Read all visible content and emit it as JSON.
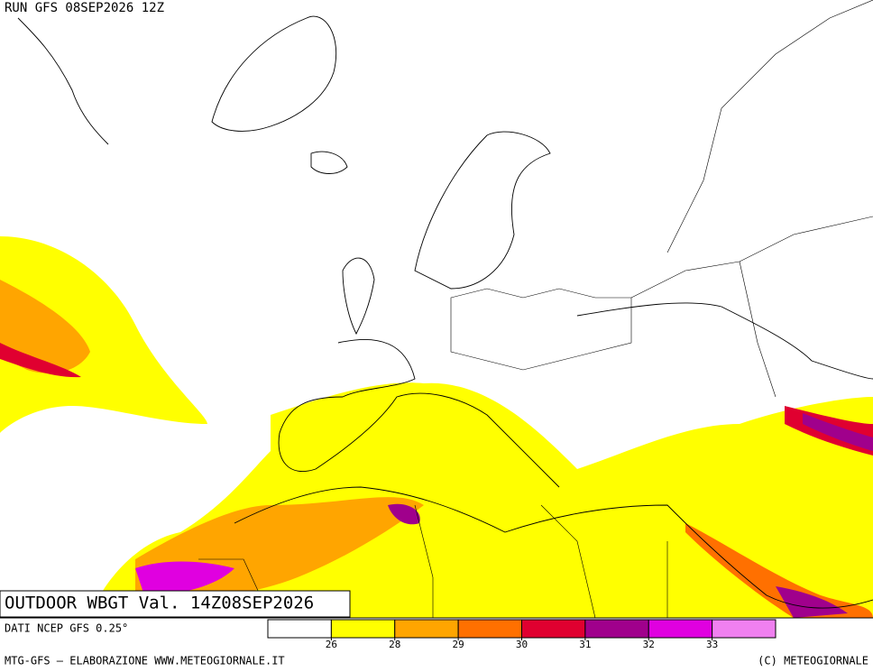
{
  "header": {
    "run": "RUN GFS 08SEP2026 12Z"
  },
  "caption": {
    "title": "OUTDOOR WBGT Val. 14Z08SEP2026"
  },
  "footer": {
    "source": "DATI NCEP GFS 0.25°",
    "credit": "MTG-GFS — ELABORAZIONE WWW.METEOGIORNALE.IT",
    "copyright": "(C) METEOGIORNALE"
  },
  "legend": {
    "colors": [
      "#ffffff",
      "#ffff00",
      "#ffa500",
      "#ff7000",
      "#e00030",
      "#a0008c",
      "#e000e0",
      "#f080f0"
    ],
    "ticks": [
      26,
      28,
      29,
      30,
      31,
      32,
      33
    ]
  }
}
